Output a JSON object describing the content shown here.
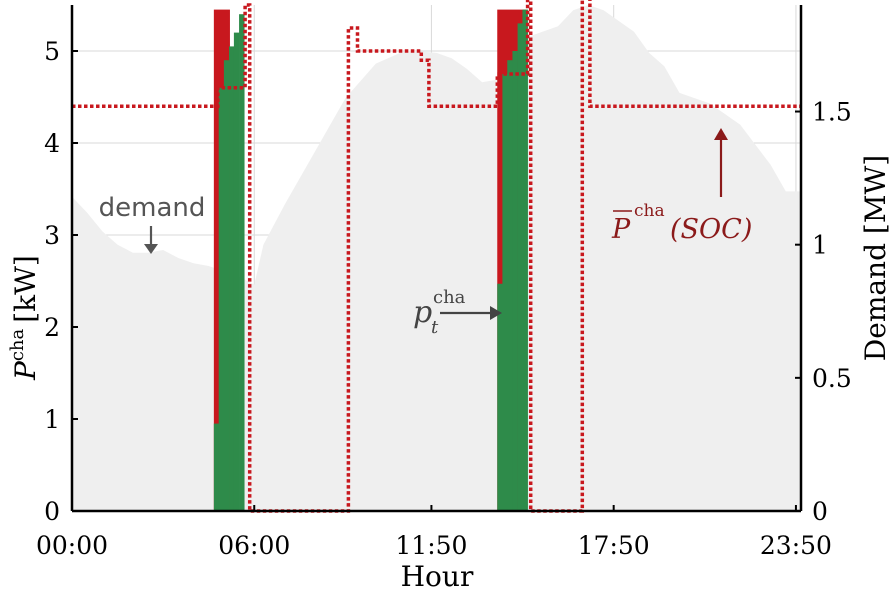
{
  "chart_data": {
    "type": "bar",
    "x_ticks": [
      "00:00",
      "06:00",
      "11:50",
      "17:50",
      "23:50"
    ],
    "x_tick_hours": [
      0,
      6,
      11.833,
      17.833,
      23.833
    ],
    "xlim": [
      0,
      24
    ],
    "xlabel": "Hour",
    "ylabel_left": "P^cha [kW]",
    "ylabel_left_parts": {
      "base": "P",
      "sup": "cha",
      "unit": "[kW]"
    },
    "ylim_left": [
      0,
      5.5
    ],
    "yticks_left": [
      "0",
      "1",
      "2",
      "3",
      "4",
      "5"
    ],
    "ylabel_right": "Demand [MW]",
    "ylim_right": [
      0,
      1.9
    ],
    "yticks_right": [
      "0",
      "0.5",
      "1",
      "1.5"
    ],
    "grid": true,
    "colors": {
      "demand": "#efefef",
      "charging": "#2e8b4a",
      "limit_excess": "#c8181e",
      "limit_line": "#c8181e",
      "annotation_gray": "#555555",
      "annotation_red": "#8b1a1a"
    },
    "demand_series": {
      "name": "demand",
      "unit": "MW",
      "points": [
        [
          0,
          1.18
        ],
        [
          0.5,
          1.12
        ],
        [
          1,
          1.05
        ],
        [
          1.5,
          1.0
        ],
        [
          2,
          0.97
        ],
        [
          2.5,
          0.97
        ],
        [
          3,
          0.98
        ],
        [
          3.5,
          0.95
        ],
        [
          4,
          0.93
        ],
        [
          4.5,
          0.92
        ],
        [
          5,
          0.9
        ],
        [
          5.5,
          0.88
        ],
        [
          6,
          0.85
        ],
        [
          6.3,
          1.0
        ],
        [
          7,
          1.15
        ],
        [
          8,
          1.35
        ],
        [
          9,
          1.55
        ],
        [
          10,
          1.68
        ],
        [
          11,
          1.73
        ],
        [
          12,
          1.72
        ],
        [
          12.5,
          1.7
        ],
        [
          13,
          1.66
        ],
        [
          13.5,
          1.61
        ],
        [
          14,
          1.62
        ],
        [
          14.3,
          1.65
        ],
        [
          15,
          1.78
        ],
        [
          16,
          1.82
        ],
        [
          16.5,
          1.88
        ],
        [
          17,
          1.9
        ],
        [
          17.5,
          1.88
        ],
        [
          18,
          1.84
        ],
        [
          18.5,
          1.8
        ],
        [
          19,
          1.72
        ],
        [
          19.5,
          1.67
        ],
        [
          20,
          1.57
        ],
        [
          21,
          1.53
        ],
        [
          22,
          1.45
        ],
        [
          23,
          1.3
        ],
        [
          23.5,
          1.2
        ],
        [
          24,
          1.2
        ]
      ]
    },
    "charging_series": {
      "name": "p_t^cha",
      "unit": "kW",
      "bars": [
        [
          4.67,
          0.95
        ],
        [
          4.83,
          4.6
        ],
        [
          5.0,
          4.9
        ],
        [
          5.17,
          5.05
        ],
        [
          5.33,
          5.2
        ],
        [
          5.5,
          5.4
        ],
        [
          14.0,
          2.47
        ],
        [
          14.17,
          4.75
        ],
        [
          14.33,
          4.9
        ],
        [
          14.5,
          5.0
        ],
        [
          14.67,
          5.3
        ],
        [
          14.83,
          5.45
        ]
      ],
      "bar_width_hours": 0.167
    },
    "limit_series": {
      "name": "P_bar^cha(SOC)",
      "unit": "kW",
      "steps": [
        [
          0,
          4.4
        ],
        [
          4.8,
          4.4
        ],
        [
          4.8,
          4.6
        ],
        [
          5.7,
          4.6
        ],
        [
          5.7,
          5.5
        ],
        [
          5.85,
          5.5
        ],
        [
          5.85,
          0
        ],
        [
          9.1,
          0
        ],
        [
          9.1,
          5.25
        ],
        [
          9.4,
          5.25
        ],
        [
          9.4,
          5.0
        ],
        [
          11.5,
          5.0
        ],
        [
          11.5,
          4.9
        ],
        [
          11.75,
          4.9
        ],
        [
          11.75,
          4.4
        ],
        [
          14.0,
          4.4
        ],
        [
          14.0,
          4.75
        ],
        [
          15.0,
          4.75
        ],
        [
          15.0,
          5.55
        ],
        [
          15.1,
          5.55
        ],
        [
          15.1,
          0
        ],
        [
          16.8,
          0
        ],
        [
          16.8,
          5.7
        ],
        [
          17.05,
          5.7
        ],
        [
          17.05,
          4.4
        ],
        [
          24,
          4.4
        ]
      ]
    },
    "excess_region": [
      [
        4.67,
        5.2,
        5.45
      ],
      [
        14.0,
        14.95,
        5.45
      ]
    ],
    "annotations": {
      "demand": "demand",
      "charging_base": "p",
      "charging_sub": "t",
      "charging_sup": "cha",
      "limit_base": "P",
      "limit_sup": "cha",
      "limit_arg": "(SOC)"
    }
  }
}
